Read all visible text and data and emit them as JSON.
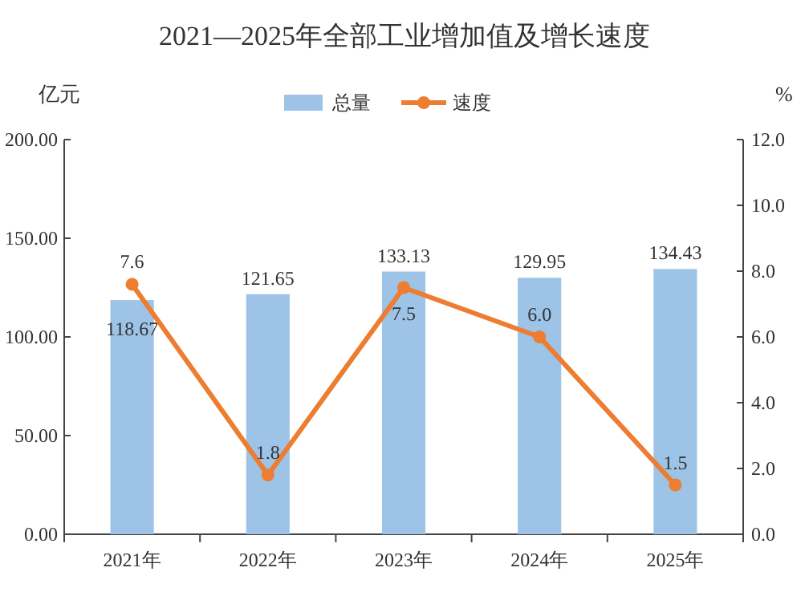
{
  "chart_data": {
    "type": "bar",
    "title": "2021—2025年全部工业增加值及增长速度",
    "ylabel": "亿元",
    "y2label": "%",
    "categories": [
      "2021年",
      "2022年",
      "2023年",
      "2024年",
      "2025年"
    ],
    "series": [
      {
        "name": "总量",
        "color": "#9dc3e6",
        "values": [
          118.67,
          121.65,
          133.13,
          129.95,
          134.43
        ],
        "value_labels": [
          "118.67",
          "121.65",
          "133.13",
          "129.95",
          "134.43"
        ]
      },
      {
        "name": "速度",
        "type": "line",
        "axis": "y2",
        "color": "#ed7d31",
        "marker": "circle",
        "values": [
          7.6,
          1.8,
          7.5,
          6.0,
          1.5
        ],
        "value_labels": [
          "7.6",
          "1.8",
          "7.5",
          "6.0",
          "1.5"
        ]
      }
    ],
    "ylim": [
      0,
      200
    ],
    "yticks": [
      {
        "value": 0,
        "label": "0.00"
      },
      {
        "value": 50,
        "label": "50.00"
      },
      {
        "value": 100,
        "label": "100.00"
      },
      {
        "value": 150,
        "label": "150.00"
      },
      {
        "value": 200,
        "label": "200.00"
      }
    ],
    "y2lim": [
      0,
      12
    ],
    "y2ticks": [
      {
        "value": 0,
        "label": "0.0"
      },
      {
        "value": 2,
        "label": "2.0"
      },
      {
        "value": 4,
        "label": "4.0"
      },
      {
        "value": 6,
        "label": "6.0"
      },
      {
        "value": 8,
        "label": "8.0"
      },
      {
        "value": 10,
        "label": "10.0"
      },
      {
        "value": 12,
        "label": "12.0"
      }
    ],
    "legend": "top",
    "grid": false
  }
}
